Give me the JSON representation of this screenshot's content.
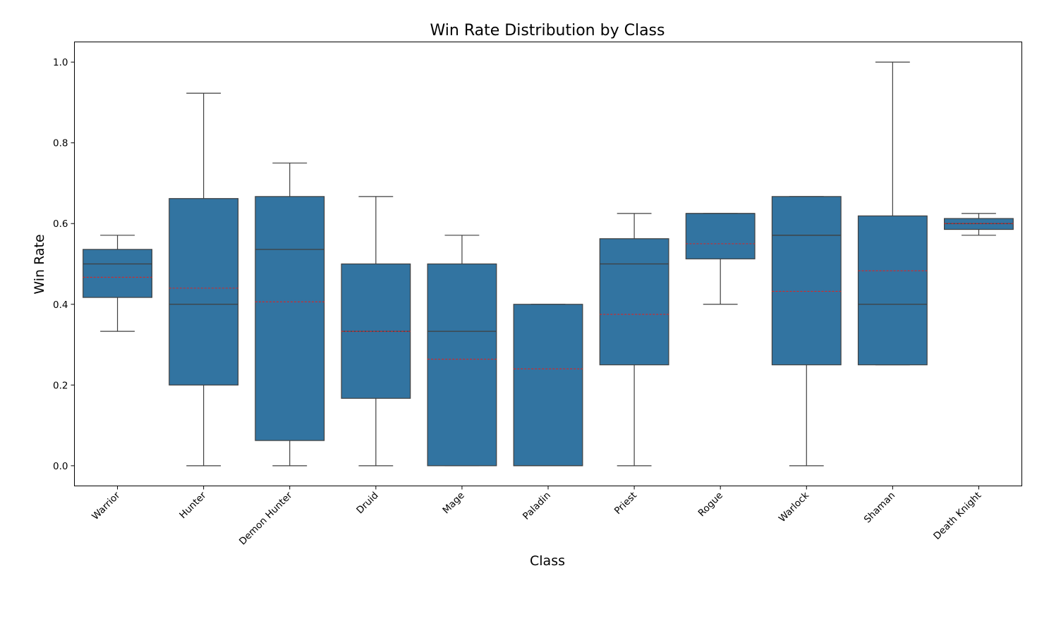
{
  "chart_data": {
    "type": "box",
    "title": "Win Rate Distribution by Class",
    "xlabel": "Class",
    "ylabel": "Win Rate",
    "ylim": [
      -0.05,
      1.05
    ],
    "yticks": [
      "0.0",
      "0.2",
      "0.4",
      "0.6",
      "0.8",
      "1.0"
    ],
    "grid": false,
    "categories": [
      "Warrior",
      "Hunter",
      "Demon Hunter",
      "Druid",
      "Mage",
      "Paladin",
      "Priest",
      "Rogue",
      "Warlock",
      "Shaman",
      "Death Knight"
    ],
    "boxes": [
      {
        "category": "Warrior",
        "whisker_low": 0.333,
        "q1": 0.417,
        "median": 0.5,
        "q3": 0.536,
        "whisker_high": 0.571,
        "mean": 0.467
      },
      {
        "category": "Hunter",
        "whisker_low": 0.0,
        "q1": 0.2,
        "median": 0.4,
        "q3": 0.662,
        "whisker_high": 0.923,
        "mean": 0.44
      },
      {
        "category": "Demon Hunter",
        "whisker_low": 0.0,
        "q1": 0.0625,
        "median": 0.536,
        "q3": 0.667,
        "whisker_high": 0.75,
        "mean": 0.406
      },
      {
        "category": "Druid",
        "whisker_low": 0.0,
        "q1": 0.167,
        "median": 0.333,
        "q3": 0.5,
        "whisker_high": 0.667,
        "mean": 0.333
      },
      {
        "category": "Mage",
        "whisker_low": 0.0,
        "q1": 0.0,
        "median": 0.333,
        "q3": 0.5,
        "whisker_high": 0.571,
        "mean": 0.264
      },
      {
        "category": "Paladin",
        "whisker_low": 0.0,
        "q1": 0.0,
        "median": 0.0,
        "q3": 0.4,
        "whisker_high": 0.4,
        "mean": 0.24
      },
      {
        "category": "Priest",
        "whisker_low": 0.0,
        "q1": 0.25,
        "median": 0.5,
        "q3": 0.5625,
        "whisker_high": 0.625,
        "mean": 0.375
      },
      {
        "category": "Rogue",
        "whisker_low": 0.4,
        "q1": 0.5125,
        "median": 0.625,
        "q3": 0.625,
        "whisker_high": 0.625,
        "mean": 0.55
      },
      {
        "category": "Warlock",
        "whisker_low": 0.0,
        "q1": 0.25,
        "median": 0.571,
        "q3": 0.667,
        "whisker_high": 0.667,
        "mean": 0.432
      },
      {
        "category": "Shaman",
        "whisker_low": 0.25,
        "q1": 0.25,
        "median": 0.4,
        "q3": 0.619,
        "whisker_high": 1.0,
        "mean": 0.483
      },
      {
        "category": "Death Knight",
        "whisker_low": 0.571,
        "q1": 0.5855,
        "median": 0.6,
        "q3": 0.6125,
        "whisker_high": 0.625,
        "mean": 0.6
      }
    ],
    "colors": {
      "box_fill": "#3274a1",
      "box_edge": "#3f3f3f",
      "mean_line": "#d62728"
    }
  }
}
